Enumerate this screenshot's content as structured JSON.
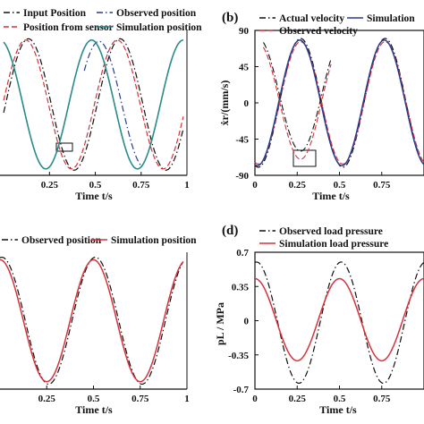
{
  "chart_data": [
    {
      "id": "a",
      "panel_label": "",
      "type": "line",
      "xlabel": "Time t/s",
      "ylabel": "",
      "xlim": [
        -0.02,
        1.0
      ],
      "ylim": [
        -1.1,
        1.15
      ],
      "x_ticks": [
        "0.25",
        "0.5",
        "0.75",
        "1"
      ],
      "x_tick_values": [
        0.25,
        0.5,
        0.75,
        1.0
      ],
      "y_ticks": [],
      "series": [
        {
          "name": "Input Position",
          "style": "dashdot",
          "color": "#111111"
        },
        {
          "name": "Position from sensor",
          "style": "dashed",
          "color": "#d6323c"
        },
        {
          "name": "Observed position",
          "style": "dashdot",
          "color": "#2a3c8c"
        },
        {
          "name": "Simulation position",
          "style": "solid",
          "color": "#2a8a8a"
        }
      ],
      "annotations": [
        "zoom box near t=0.35"
      ]
    },
    {
      "id": "b",
      "panel_label": "(b)",
      "type": "line",
      "xlabel": "Time t/s",
      "ylabel": "ẋr/(mm/s)",
      "xlim": [
        0,
        1.0
      ],
      "ylim": [
        -90,
        90
      ],
      "x_ticks": [
        "0",
        "0.25",
        "0.5",
        "0.75"
      ],
      "x_tick_values": [
        0,
        0.25,
        0.5,
        0.75
      ],
      "y_ticks": [
        "90",
        "45",
        "0",
        "-45",
        "-90"
      ],
      "y_tick_values": [
        90,
        45,
        0,
        -45,
        -90
      ],
      "series": [
        {
          "name": "Actual velocity",
          "style": "dashdot",
          "color": "#111111"
        },
        {
          "name": "Observed velocity",
          "style": "dashed",
          "color": "#d6323c"
        },
        {
          "name": "Simulation",
          "style": "solid",
          "color": "#2a3c8c"
        }
      ],
      "annotations": [
        "zoom box near t=0.25"
      ]
    },
    {
      "id": "c",
      "panel_label": "",
      "type": "line",
      "xlabel": "Time t/s",
      "ylabel": "",
      "xlim": [
        0,
        1.0
      ],
      "ylim": [
        -1.1,
        1.1
      ],
      "x_ticks": [
        "0.25",
        "0.5",
        "0.75",
        "1"
      ],
      "x_tick_values": [
        0.25,
        0.5,
        0.75,
        1.0
      ],
      "y_ticks": [],
      "series": [
        {
          "name": "Observed  position",
          "style": "dashdot",
          "color": "#111111"
        },
        {
          "name": "Simulation position",
          "style": "solid",
          "color": "#d6323c"
        }
      ]
    },
    {
      "id": "d",
      "panel_label": "(d)",
      "type": "line",
      "xlabel": "Time t/s",
      "ylabel": "pL / MPa",
      "xlim": [
        0,
        1.0
      ],
      "ylim": [
        -0.7,
        0.7
      ],
      "x_ticks": [
        "0",
        "0.25",
        "0.5",
        "0.75"
      ],
      "x_tick_values": [
        0,
        0.25,
        0.5,
        0.75
      ],
      "y_ticks": [
        "0.7",
        "0.35",
        "0",
        "-0.35",
        "-0.7"
      ],
      "y_tick_values": [
        0.7,
        0.35,
        0,
        -0.35,
        -0.7
      ],
      "series": [
        {
          "name": "Observed load pressure",
          "style": "dashdot",
          "color": "#111111"
        },
        {
          "name": "Simulation load pressure",
          "style": "solid",
          "color": "#d6323c"
        }
      ]
    }
  ]
}
